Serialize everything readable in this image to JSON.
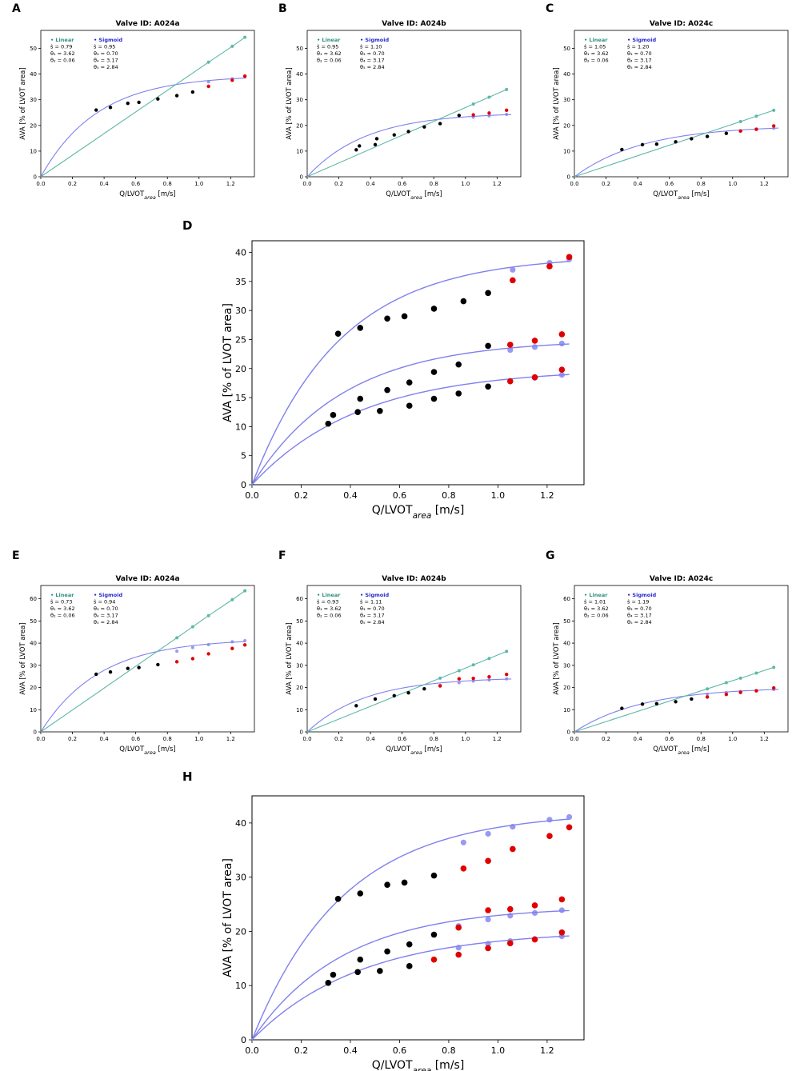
{
  "colors": {
    "linear": "#5fb8a8",
    "linear_title": "#2e8f7f",
    "sigmoid": "#8080ee",
    "sigmoid_title": "#2828cc",
    "observed": "#000000",
    "extrapolated": "#e00000"
  },
  "chart_data": [
    {
      "id": "A",
      "panel_label": "A",
      "type": "line",
      "title": "Valve ID: A024a",
      "xlabel": "Q/LVOT",
      "xlabel_sub": "area",
      "xlabel_unit": "[m/s]",
      "ylabel": "AVA [% of LVOT area]",
      "xlim": [
        0,
        1.35
      ],
      "ylim": [
        0,
        57
      ],
      "xticks": [
        0.0,
        0.2,
        0.4,
        0.6,
        0.8,
        1.0,
        1.2
      ],
      "yticks": [
        0,
        10,
        20,
        30,
        40,
        50
      ],
      "legend": {
        "linear_title": "• Linear",
        "sigmoid_title": "• Sigmoid",
        "linear_lines": [
          "ŝ   = 0.79",
          "θ₁ = 3.62",
          "θ₂ = 0.06"
        ],
        "sigmoid_lines": [
          "ŝ   = 0.95",
          "θ₃ = 0.70",
          "θ₄ = 3.17",
          "θ₅ = 2.84"
        ]
      },
      "sigmoid_params": {
        "A": 39.5,
        "k": 2.8
      },
      "series": [
        {
          "name": "observed",
          "x": [
            0.35,
            0.44,
            0.55,
            0.62,
            0.74,
            0.86,
            0.96
          ],
          "y": [
            26.0,
            27.0,
            28.6,
            29.0,
            30.3,
            31.6,
            33.0
          ]
        },
        {
          "name": "extrapolated",
          "x": [
            1.06,
            1.21,
            1.29
          ],
          "y": [
            35.2,
            37.6,
            39.2
          ]
        },
        {
          "name": "linear",
          "x": [
            0,
            1.06,
            1.21,
            1.29
          ],
          "y": [
            0,
            44.6,
            50.8,
            54.3
          ]
        },
        {
          "name": "sigmoid",
          "x": [
            1.06,
            1.21,
            1.29
          ],
          "y": [
            37.0,
            38.2,
            38.8
          ]
        }
      ]
    },
    {
      "id": "B",
      "panel_label": "B",
      "type": "line",
      "title": "Valve ID: A024b",
      "xlabel": "Q/LVOT",
      "xlabel_sub": "area",
      "xlabel_unit": "[m/s]",
      "ylabel": "AVA [% of LVOT area]",
      "xlim": [
        0,
        1.35
      ],
      "ylim": [
        0,
        57
      ],
      "xticks": [
        0.0,
        0.2,
        0.4,
        0.6,
        0.8,
        1.0,
        1.2
      ],
      "yticks": [
        0,
        10,
        20,
        30,
        40,
        50
      ],
      "legend": {
        "linear_title": "• Linear",
        "sigmoid_title": "• Sigmoid",
        "linear_lines": [
          "ŝ   = 0.95",
          "θ₁ = 3.62",
          "θ₂ = 0.06"
        ],
        "sigmoid_lines": [
          "ŝ   = 1.10",
          "θ₃ = 0.70",
          "θ₄ = 3.17",
          "θ₅ = 2.84"
        ]
      },
      "sigmoid_params": {
        "A": 25.0,
        "k": 2.7
      },
      "series": [
        {
          "name": "observed",
          "x": [
            0.31,
            0.33,
            0.43,
            0.44,
            0.55,
            0.64,
            0.74,
            0.84,
            0.96
          ],
          "y": [
            10.5,
            12.0,
            12.5,
            14.8,
            16.3,
            17.6,
            19.4,
            20.7,
            23.9
          ]
        },
        {
          "name": "extrapolated",
          "x": [
            1.05,
            1.15,
            1.26
          ],
          "y": [
            24.1,
            24.8,
            25.9
          ]
        },
        {
          "name": "linear",
          "x": [
            0,
            1.05,
            1.15,
            1.26
          ],
          "y": [
            0,
            28.3,
            31.0,
            34.0
          ]
        },
        {
          "name": "sigmoid",
          "x": [
            1.05,
            1.15,
            1.26
          ],
          "y": [
            23.2,
            23.7,
            24.3
          ]
        }
      ]
    },
    {
      "id": "C",
      "panel_label": "C",
      "type": "line",
      "title": "Valve ID: A024c",
      "xlabel": "Q/LVOT",
      "xlabel_sub": "area",
      "xlabel_unit": "[m/s]",
      "ylabel": "AVA [% of LVOT area]",
      "xlim": [
        0,
        1.35
      ],
      "ylim": [
        0,
        57
      ],
      "xticks": [
        0.0,
        0.2,
        0.4,
        0.6,
        0.8,
        1.0,
        1.2
      ],
      "yticks": [
        0,
        10,
        20,
        30,
        40,
        50
      ],
      "legend": {
        "linear_title": "• Linear",
        "sigmoid_title": "• Sigmoid",
        "linear_lines": [
          "ŝ   = 1.05",
          "θ₁ = 3.62",
          "θ₂ = 0.06"
        ],
        "sigmoid_lines": [
          "ŝ   = 1.20",
          "θ₃ = 0.70",
          "θ₄ = 3.17",
          "θ₅ = 2.84"
        ]
      },
      "sigmoid_params": {
        "A": 20.0,
        "k": 2.3
      },
      "series": [
        {
          "name": "observed",
          "x": [
            0.3,
            0.43,
            0.52,
            0.64,
            0.74,
            0.84,
            0.96
          ],
          "y": [
            10.6,
            12.5,
            12.7,
            13.6,
            14.8,
            15.7,
            16.9
          ]
        },
        {
          "name": "extrapolated",
          "x": [
            1.05,
            1.15,
            1.26
          ],
          "y": [
            17.8,
            18.5,
            19.8
          ]
        },
        {
          "name": "linear",
          "x": [
            0,
            1.05,
            1.15,
            1.26
          ],
          "y": [
            0,
            21.5,
            23.6,
            25.9
          ]
        },
        {
          "name": "sigmoid",
          "x": [
            1.05,
            1.15,
            1.26
          ],
          "y": [
            17.9,
            18.4,
            18.9
          ]
        }
      ]
    },
    {
      "id": "D",
      "panel_label": "D",
      "type": "line",
      "title": "",
      "xlabel": "Q/LVOT",
      "xlabel_sub": "area",
      "xlabel_unit": "[m/s]",
      "ylabel": "AVA [% of LVOT area]",
      "xlim": [
        0,
        1.35
      ],
      "ylim": [
        0,
        42
      ],
      "xticks": [
        0.0,
        0.2,
        0.4,
        0.6,
        0.8,
        1.0,
        1.2
      ],
      "yticks": [
        0,
        5,
        10,
        15,
        20,
        25,
        30,
        35,
        40
      ],
      "curves": [
        {
          "A": 39.5,
          "k": 2.8
        },
        {
          "A": 25.0,
          "k": 2.7
        },
        {
          "A": 20.0,
          "k": 2.3
        }
      ],
      "series": [
        {
          "name": "observed",
          "x": [
            0.35,
            0.44,
            0.55,
            0.62,
            0.74,
            0.86,
            0.96,
            0.31,
            0.33,
            0.43,
            0.44,
            0.55,
            0.64,
            0.74,
            0.84,
            0.96,
            0.52,
            0.64,
            0.74,
            0.84,
            0.96
          ],
          "y": [
            26.0,
            27.0,
            28.6,
            29.0,
            30.3,
            31.6,
            33.0,
            10.5,
            12.0,
            12.5,
            14.8,
            16.3,
            17.6,
            19.4,
            20.7,
            23.9,
            12.7,
            13.6,
            14.8,
            15.7,
            16.9
          ]
        },
        {
          "name": "extrapolated",
          "x": [
            1.06,
            1.21,
            1.29,
            1.05,
            1.15,
            1.26,
            1.05,
            1.15,
            1.26
          ],
          "y": [
            35.2,
            37.6,
            39.2,
            24.1,
            24.8,
            25.9,
            17.8,
            18.5,
            19.8
          ]
        },
        {
          "name": "sigmoid",
          "x": [
            1.06,
            1.21,
            1.29,
            1.05,
            1.15,
            1.26,
            1.05,
            1.15,
            1.26
          ],
          "y": [
            37.0,
            38.2,
            38.8,
            23.2,
            23.7,
            24.3,
            17.9,
            18.4,
            18.9
          ]
        }
      ]
    },
    {
      "id": "E",
      "panel_label": "E",
      "type": "line",
      "title": "Valve ID: A024a",
      "xlabel": "Q/LVOT",
      "xlabel_sub": "area",
      "xlabel_unit": "[m/s]",
      "ylabel": "AVA [% of LVOT area]",
      "xlim": [
        0,
        1.35
      ],
      "ylim": [
        0,
        66
      ],
      "xticks": [
        0.0,
        0.2,
        0.4,
        0.6,
        0.8,
        1.0,
        1.2
      ],
      "yticks": [
        0,
        10,
        20,
        30,
        40,
        50,
        60
      ],
      "legend": {
        "linear_title": "• Linear",
        "sigmoid_title": "• Sigmoid",
        "linear_lines": [
          "ŝ   = 0.73",
          "θ₁ = 3.62",
          "θ₂ = 0.06"
        ],
        "sigmoid_lines": [
          "ŝ   = 0.94",
          "θ₃ = 0.70",
          "θ₄ = 3.17",
          "θ₅ = 2.84"
        ]
      },
      "sigmoid_params": {
        "A": 42.0,
        "k": 2.7
      },
      "series": [
        {
          "name": "observed",
          "x": [
            0.35,
            0.44,
            0.55,
            0.62,
            0.74
          ],
          "y": [
            26.0,
            27.0,
            28.6,
            29.0,
            30.3
          ]
        },
        {
          "name": "extrapolated",
          "x": [
            0.86,
            0.96,
            1.06,
            1.21,
            1.29
          ],
          "y": [
            31.6,
            33.0,
            35.2,
            37.6,
            39.2
          ]
        },
        {
          "name": "linear",
          "x": [
            0,
            0.86,
            0.96,
            1.06,
            1.21,
            1.29
          ],
          "y": [
            0,
            42.4,
            47.4,
            52.4,
            59.6,
            63.6
          ]
        },
        {
          "name": "sigmoid",
          "x": [
            0.86,
            0.96,
            1.06,
            1.21,
            1.29
          ],
          "y": [
            36.4,
            38.0,
            39.3,
            40.6,
            41.1
          ]
        }
      ]
    },
    {
      "id": "F",
      "panel_label": "F",
      "type": "line",
      "title": "Valve ID: A024b",
      "xlabel": "Q/LVOT",
      "xlabel_sub": "area",
      "xlabel_unit": "[m/s]",
      "ylabel": "AVA [% of LVOT area]",
      "xlim": [
        0,
        1.35
      ],
      "ylim": [
        0,
        66
      ],
      "xticks": [
        0.0,
        0.2,
        0.4,
        0.6,
        0.8,
        1.0,
        1.2
      ],
      "yticks": [
        0,
        10,
        20,
        30,
        40,
        50,
        60
      ],
      "legend": {
        "linear_title": "• Linear",
        "sigmoid_title": "• Sigmoid",
        "linear_lines": [
          "ŝ   = 0.93",
          "θ₁ = 3.62",
          "θ₂ = 0.06"
        ],
        "sigmoid_lines": [
          "ŝ   = 1.11",
          "θ₃ = 0.70",
          "θ₄ = 3.17",
          "θ₅ = 2.84"
        ]
      },
      "sigmoid_params": {
        "A": 24.6,
        "k": 2.7
      },
      "series": [
        {
          "name": "observed",
          "x": [
            0.31,
            0.43,
            0.55,
            0.64,
            0.74
          ],
          "y": [
            11.8,
            14.8,
            16.3,
            17.6,
            19.4
          ]
        },
        {
          "name": "extrapolated",
          "x": [
            0.84,
            0.96,
            1.05,
            1.15,
            1.26
          ],
          "y": [
            20.7,
            23.9,
            24.1,
            24.8,
            25.9
          ]
        },
        {
          "name": "linear",
          "x": [
            0,
            0.84,
            0.96,
            1.05,
            1.15,
            1.26
          ],
          "y": [
            0,
            24.2,
            27.6,
            30.2,
            33.1,
            36.3
          ]
        },
        {
          "name": "sigmoid",
          "x": [
            0.84,
            0.96,
            1.05,
            1.15,
            1.26
          ],
          "y": [
            21.0,
            22.2,
            22.9,
            23.4,
            23.9
          ]
        }
      ]
    },
    {
      "id": "G",
      "panel_label": "G",
      "type": "line",
      "title": "Valve ID: A024c",
      "xlabel": "Q/LVOT",
      "xlabel_sub": "area",
      "xlabel_unit": "[m/s]",
      "ylabel": "AVA [% of LVOT area]",
      "xlim": [
        0,
        1.35
      ],
      "ylim": [
        0,
        66
      ],
      "xticks": [
        0.0,
        0.2,
        0.4,
        0.6,
        0.8,
        1.0,
        1.2
      ],
      "yticks": [
        0,
        10,
        20,
        30,
        40,
        50,
        60
      ],
      "legend": {
        "linear_title": "• Linear",
        "sigmoid_title": "• Sigmoid",
        "linear_lines": [
          "ŝ   = 1.01",
          "θ₁ = 3.62",
          "θ₂ = 0.06"
        ],
        "sigmoid_lines": [
          "ŝ   = 1.19",
          "θ₃ = 0.70",
          "θ₄ = 3.17",
          "θ₅ = 2.84"
        ]
      },
      "sigmoid_params": {
        "A": 20.2,
        "k": 2.3
      },
      "series": [
        {
          "name": "observed",
          "x": [
            0.3,
            0.43,
            0.52,
            0.64,
            0.74
          ],
          "y": [
            10.6,
            12.5,
            12.7,
            13.6,
            14.8
          ]
        },
        {
          "name": "extrapolated",
          "x": [
            0.84,
            0.96,
            1.05,
            1.15,
            1.26
          ],
          "y": [
            15.7,
            16.9,
            17.8,
            18.5,
            19.8
          ]
        },
        {
          "name": "linear",
          "x": [
            0,
            0.84,
            0.96,
            1.05,
            1.15,
            1.26
          ],
          "y": [
            0,
            19.4,
            22.2,
            24.2,
            26.5,
            29.1
          ]
        },
        {
          "name": "sigmoid",
          "x": [
            0.84,
            0.96,
            1.05,
            1.15,
            1.26
          ],
          "y": [
            17.0,
            17.7,
            18.2,
            18.6,
            19.1
          ]
        }
      ]
    },
    {
      "id": "H",
      "panel_label": "H",
      "type": "line",
      "title": "",
      "xlabel": "Q/LVOT",
      "xlabel_sub": "area",
      "xlabel_unit": "[m/s]",
      "ylabel": "AVA [% of LVOT area]",
      "xlim": [
        0,
        1.35
      ],
      "ylim": [
        0,
        45
      ],
      "xticks": [
        0.0,
        0.2,
        0.4,
        0.6,
        0.8,
        1.0,
        1.2
      ],
      "yticks": [
        0,
        10,
        20,
        30,
        40
      ],
      "curves": [
        {
          "A": 42.0,
          "k": 2.7
        },
        {
          "A": 24.6,
          "k": 2.7
        },
        {
          "A": 20.2,
          "k": 2.3
        }
      ],
      "series": [
        {
          "name": "observed",
          "x": [
            0.35,
            0.44,
            0.55,
            0.62,
            0.74,
            0.31,
            0.33,
            0.43,
            0.44,
            0.55,
            0.64,
            0.74,
            0.52,
            0.64
          ],
          "y": [
            26.0,
            27.0,
            28.6,
            29.0,
            30.3,
            10.5,
            12.0,
            12.5,
            14.8,
            16.3,
            17.6,
            19.4,
            12.7,
            13.6
          ]
        },
        {
          "name": "extrapolated",
          "x": [
            0.74,
            0.86,
            0.96,
            1.06,
            1.21,
            1.29,
            0.84,
            0.96,
            1.05,
            1.15,
            1.26,
            0.84,
            0.96,
            1.05,
            1.15,
            1.26
          ],
          "y": [
            14.8,
            31.6,
            33.0,
            35.2,
            37.6,
            39.2,
            20.7,
            23.9,
            24.1,
            24.8,
            25.9,
            15.7,
            16.9,
            17.8,
            18.5,
            19.8
          ]
        },
        {
          "name": "sigmoid",
          "x": [
            0.86,
            0.96,
            1.06,
            1.21,
            1.29,
            0.84,
            0.96,
            1.05,
            1.15,
            1.26,
            0.84,
            0.96,
            1.05,
            1.15,
            1.26
          ],
          "y": [
            36.4,
            38.0,
            39.3,
            40.6,
            41.1,
            21.0,
            22.2,
            22.9,
            23.4,
            23.9,
            17.0,
            17.7,
            18.2,
            18.6,
            19.1
          ]
        }
      ]
    }
  ]
}
